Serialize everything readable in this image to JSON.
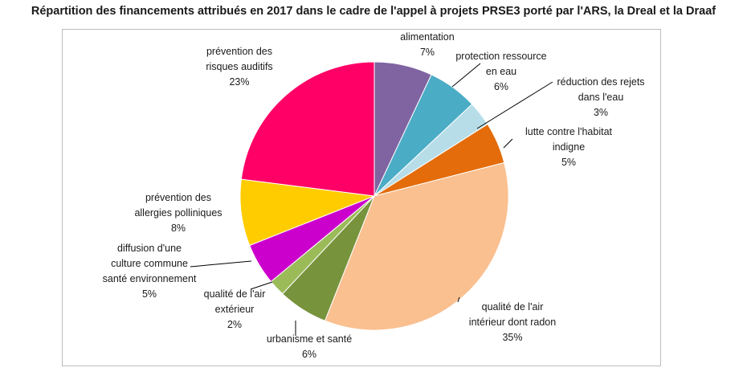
{
  "chart_data": {
    "type": "pie",
    "title": "Répartition des financements attribués en 2017 dans le cadre de l'appel à projets PRSE3 porté par l'ARS, la Dreal et la Draaf",
    "start_angle_deg": 0,
    "direction": "clockwise",
    "slices": [
      {
        "label_lines": [
          "alimentation"
        ],
        "value_text": "7%",
        "value": 7,
        "color": "#8064a2"
      },
      {
        "label_lines": [
          "protection ressource",
          "en eau"
        ],
        "value_text": "6%",
        "value": 6,
        "color": "#4bacc6"
      },
      {
        "label_lines": [
          "réduction des rejets",
          "dans l'eau"
        ],
        "value_text": "3%",
        "value": 3,
        "color": "#b7dee8"
      },
      {
        "label_lines": [
          "lutte contre l'habitat",
          "indigne"
        ],
        "value_text": "5%",
        "value": 5,
        "color": "#e46c0a"
      },
      {
        "label_lines": [
          "qualité de l'air",
          "intérieur dont radon"
        ],
        "value_text": "35%",
        "value": 35,
        "color": "#fac090"
      },
      {
        "label_lines": [
          "urbanisme et santé"
        ],
        "value_text": "6%",
        "value": 6,
        "color": "#77933c"
      },
      {
        "label_lines": [
          "qualité de l'air",
          "extérieur"
        ],
        "value_text": "2%",
        "value": 2,
        "color": "#9bbb59"
      },
      {
        "label_lines": [
          "diffusion d'une",
          "culture commune",
          "santé environnement"
        ],
        "value_text": "5%",
        "value": 5,
        "color": "#cc00cc"
      },
      {
        "label_lines": [
          "prévention des",
          "allergies polliniques"
        ],
        "value_text": "8%",
        "value": 8,
        "color": "#ffcc00"
      },
      {
        "label_lines": [
          "prévention des",
          "risques auditifs"
        ],
        "value_text": "23%",
        "value": 23,
        "color": "#ff0066"
      }
    ]
  }
}
